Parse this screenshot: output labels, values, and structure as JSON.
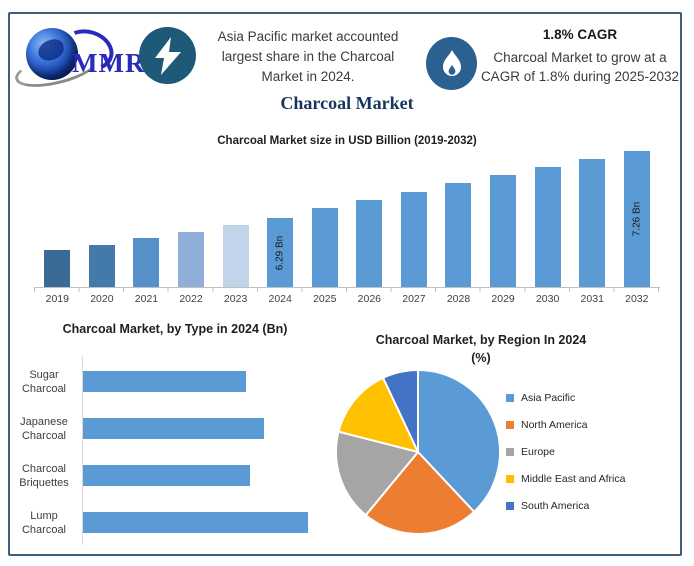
{
  "header": {
    "logo": {
      "text": "MMR"
    },
    "asia_note_lines": [
      "Asia Pacific market accounted",
      "largest share in the Charcoal",
      "Market in 2024."
    ],
    "cagr_title": "1.8% CAGR",
    "cagr_note_lines": [
      "Charcoal Market to grow at a",
      "CAGR of 1.8% during 2025-2032"
    ]
  },
  "page_title": "Charcoal Market",
  "chart_data": [
    {
      "id": "market_size",
      "type": "bar",
      "title": "Charcoal Market size in USD Billion (2019-2032)",
      "categories": [
        "2019",
        "2020",
        "2021",
        "2022",
        "2023",
        "2024",
        "2025",
        "2026",
        "2027",
        "2028",
        "2029",
        "2030",
        "2031",
        "2032"
      ],
      "values": [
        5.83,
        5.91,
        6.01,
        6.09,
        6.19,
        6.29,
        6.44,
        6.55,
        6.67,
        6.8,
        6.91,
        7.03,
        7.14,
        7.26
      ],
      "data_labels": [
        "",
        "",
        "",
        "",
        "",
        "6.29 Bn",
        "",
        "",
        "",
        "",
        "",
        "",
        "",
        "7.26 Bn"
      ],
      "bar_colors": [
        "#3A6A96",
        "#447AA9",
        "#5590C9",
        "#8FAFD9",
        "#C2D4EA",
        "#5B9BD5",
        "#5B9BD5",
        "#5B9BD5",
        "#5B9BD5",
        "#5B9BD5",
        "#5B9BD5",
        "#5B9BD5",
        "#5B9BD5",
        "#5B9BD5"
      ],
      "ylabel": "",
      "xlabel": "",
      "ylim": [
        5.3,
        7.26
      ],
      "grid": false,
      "legend": false
    },
    {
      "id": "by_type",
      "type": "bar",
      "orientation": "horizontal",
      "title": "Charcoal Market, by Type in 2024 (Bn)",
      "categories": [
        "Sugar Charcoal",
        "Japanese Charcoal",
        "Charcoal Briquettes",
        "Lump Charcoal"
      ],
      "values": [
        1.39,
        1.55,
        1.43,
        1.92
      ],
      "bar_color": "#5B9BD5",
      "xlim": [
        0,
        2.0
      ],
      "grid": false,
      "legend": false
    },
    {
      "id": "by_region",
      "type": "pie",
      "title": "Charcoal Market, by Region In 2024 (%)",
      "title_lines": [
        "Charcoal Market, by Region In 2024",
        "(%)"
      ],
      "labels": [
        "Asia Pacific",
        "North America",
        "Europe",
        "Middle East and Africa",
        "South America"
      ],
      "values": [
        38,
        23,
        18,
        14,
        7
      ],
      "colors": [
        "#5B9BD5",
        "#ED7D31",
        "#A5A5A5",
        "#FFC000",
        "#4472C4"
      ],
      "legend_position": "right"
    }
  ],
  "colors": {
    "frame_border": "#3E5C7E",
    "lightning_circle": "#1E5A78",
    "flame_circle": "#2A6190",
    "title_navy": "#17365D",
    "logo_blue": "#2B2BBB",
    "primary_bar": "#5B9BD5"
  }
}
